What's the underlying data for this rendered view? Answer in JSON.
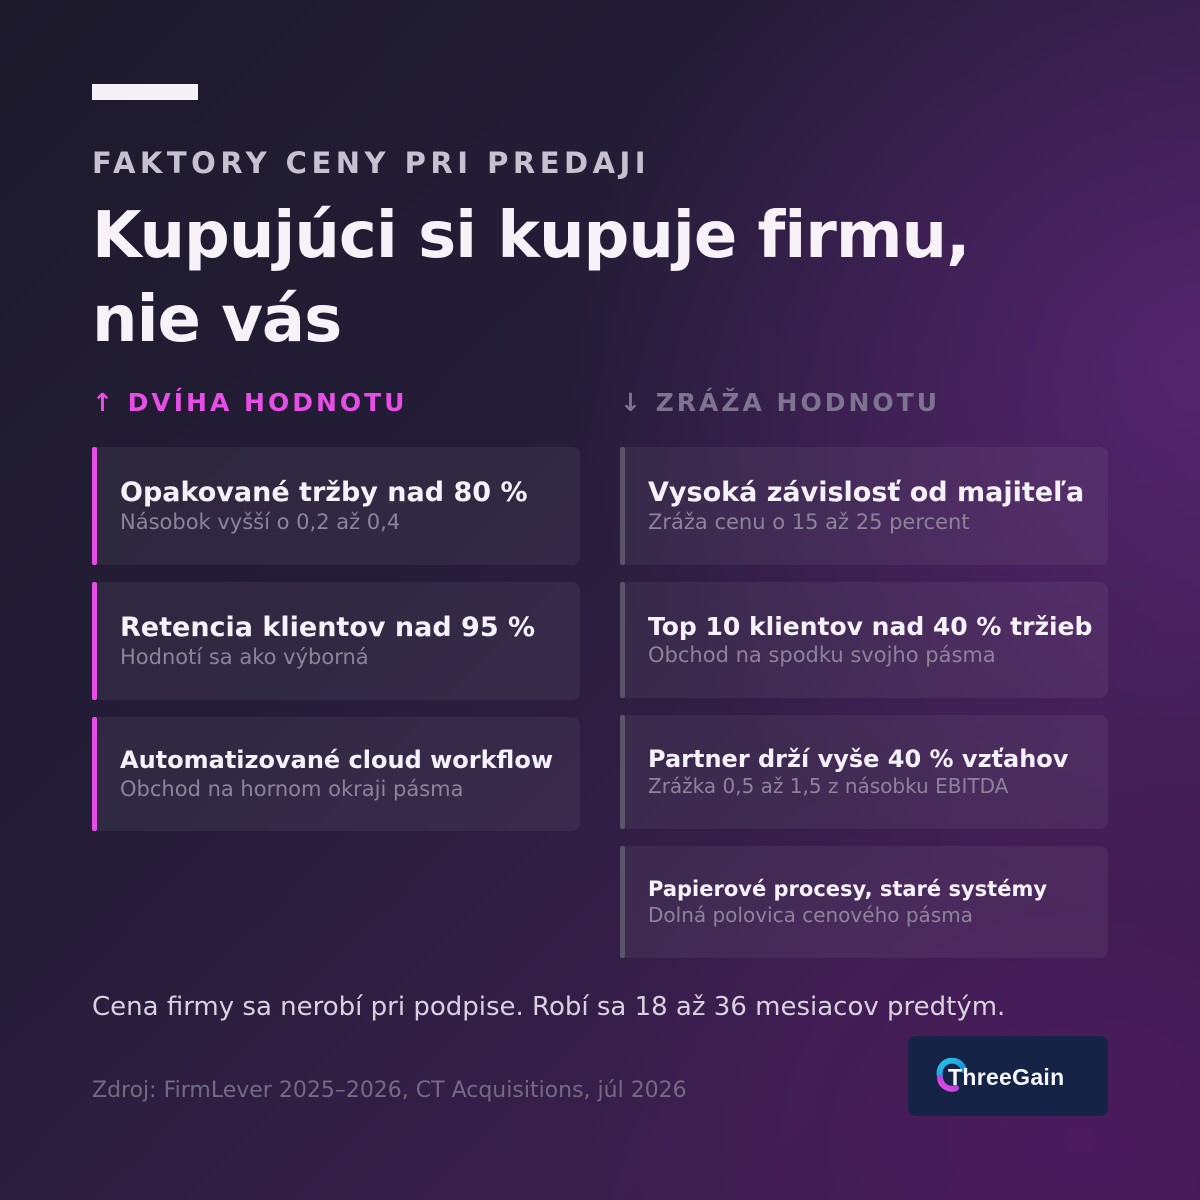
{
  "eyebrow": "FAKTORY CENY PRI PREDAJI",
  "headline": "Kupujúci si kupuje firmu, nie vás",
  "increase": {
    "heading": "↑ DVÍHA HODNOTU",
    "items": [
      {
        "title": "Opakované tržby nad 80 %",
        "subtitle": "Násobok vyšší o 0,2 až 0,4"
      },
      {
        "title": "Retencia klientov nad 95 %",
        "subtitle": "Hodnotí sa ako výborná"
      },
      {
        "title": "Automatizované cloud workflow",
        "subtitle": "Obchod na hornom okraji pásma"
      }
    ]
  },
  "decrease": {
    "heading": "↓ ZRÁŽA HODNOTU",
    "items": [
      {
        "title": "Vysoká závislosť od majiteľa",
        "subtitle": "Zráža cenu o 15 až 25 percent"
      },
      {
        "title": "Top 10 klientov nad 40 % tržieb",
        "subtitle": "Obchod na spodku svojho pásma"
      },
      {
        "title": "Partner drží vyše 40 % vzťahov",
        "subtitle": "Zrážka 0,5 až 1,5 z násobku EBITDA"
      },
      {
        "title": "Papierové procesy, staré systémy",
        "subtitle": "Dolná polovica cenového pásma"
      }
    ]
  },
  "footer_note": "Cena firmy sa nerobí pri podpise. Robí sa 18 až 36 mesiacov predtým.",
  "source": "Zdroj: FirmLever 2025–2026, CT Acquisitions, júl 2026",
  "logo": {
    "text": "ThreeGain",
    "icon": "threegain-logo-icon"
  },
  "colors": {
    "accent_magenta": "#e54ee6",
    "neutral_bar": "#5a5468",
    "logo_bg": "#152347",
    "background_dark": "#1c1a2b",
    "background_purple": "#3d1c4c"
  }
}
